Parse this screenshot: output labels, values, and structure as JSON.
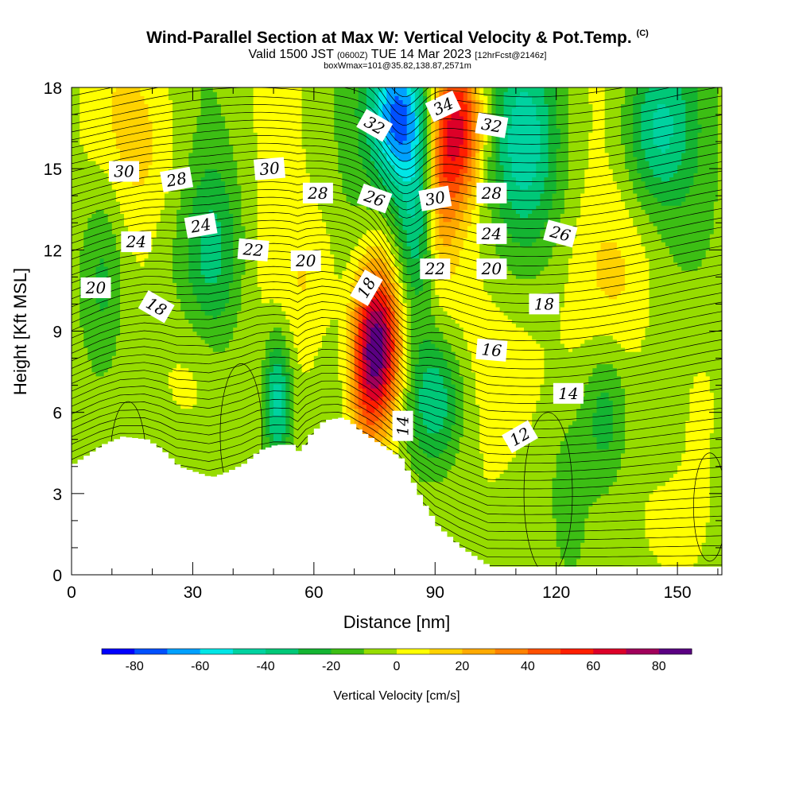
{
  "title": {
    "main": "Wind-Parallel Section at Max W: Vertical Velocity & Pot.Temp.",
    "copyright": "(C)",
    "valid_prefix": "Valid 1500 JST",
    "valid_z": "(0600Z)",
    "valid_date": "TUE 14 Mar 2023",
    "forecast": "[12hrFcst@2146z]",
    "box_info": "boxWmax=101@35.82,138.87,2571m"
  },
  "chart_data": {
    "type": "heatmap",
    "xlabel": "Distance [nm]",
    "ylabel": "Height [Kft MSL]",
    "xlim": [
      0,
      161
    ],
    "ylim": [
      0,
      18
    ],
    "x_ticks": [
      0,
      30,
      60,
      90,
      120,
      150
    ],
    "y_ticks": [
      0,
      3,
      6,
      9,
      12,
      15,
      18
    ],
    "colorbar": {
      "label": "Vertical Velocity [cm/s]",
      "ticks": [
        -80,
        -60,
        -40,
        -20,
        0,
        20,
        40,
        60,
        80
      ],
      "levels": [
        -90,
        -80,
        -70,
        -60,
        -50,
        -40,
        -30,
        -20,
        -10,
        0,
        10,
        20,
        30,
        40,
        50,
        60,
        70,
        80,
        90
      ],
      "colors": [
        "#0000ff",
        "#0050ff",
        "#00a0ff",
        "#00e6e6",
        "#00d2a0",
        "#00c878",
        "#14b432",
        "#3cbe14",
        "#96dc00",
        "#ffff00",
        "#ffd200",
        "#ffaa00",
        "#ff8200",
        "#ff5000",
        "#ff1e00",
        "#dc0028",
        "#a0005a",
        "#5a0082"
      ]
    },
    "vertical_velocity_field": {
      "background": -5,
      "features": [
        {
          "x": 76,
          "y": 8.5,
          "sx": 4,
          "sy": 2.2,
          "value": 90
        },
        {
          "x": 72,
          "y": 7.0,
          "sx": 3,
          "sy": 2.5,
          "value": 25
        },
        {
          "x": 96,
          "y": 16.5,
          "sx": 4,
          "sy": 2.0,
          "value": 60
        },
        {
          "x": 91,
          "y": 14.0,
          "sx": 3,
          "sy": 2.5,
          "value": 35
        },
        {
          "x": 81,
          "y": 17.0,
          "sx": 5,
          "sy": 1.8,
          "value": -65
        },
        {
          "x": 86,
          "y": 13.0,
          "sx": 4,
          "sy": 2.5,
          "value": -40
        },
        {
          "x": 90,
          "y": 6.5,
          "sx": 5,
          "sy": 1.8,
          "value": -40
        },
        {
          "x": 51,
          "y": 6.5,
          "sx": 2.5,
          "sy": 1.8,
          "value": -45
        },
        {
          "x": 112,
          "y": 16.0,
          "sx": 6,
          "sy": 2.5,
          "value": -35
        },
        {
          "x": 145,
          "y": 16.5,
          "sx": 6,
          "sy": 2.0,
          "value": -35
        },
        {
          "x": 110,
          "y": 8.0,
          "sx": 9,
          "sy": 2.5,
          "value": 15
        },
        {
          "x": 30,
          "y": 7.5,
          "sx": 6,
          "sy": 2.0,
          "value": 15
        },
        {
          "x": 60,
          "y": 11.0,
          "sx": 6,
          "sy": 2.0,
          "value": 12
        },
        {
          "x": 18,
          "y": 16.0,
          "sx": 10,
          "sy": 2.5,
          "value": 15
        },
        {
          "x": 8,
          "y": 11.0,
          "sx": 4,
          "sy": 3.0,
          "value": -25
        },
        {
          "x": 35,
          "y": 12.0,
          "sx": 5,
          "sy": 2.5,
          "value": -25
        },
        {
          "x": 132,
          "y": 6.0,
          "sx": 4,
          "sy": 2.0,
          "value": -25
        },
        {
          "x": 135,
          "y": 11.0,
          "sx": 8,
          "sy": 2.0,
          "value": 10
        },
        {
          "x": 155,
          "y": 7.0,
          "sx": 5,
          "sy": 2.5,
          "value": 12
        },
        {
          "x": 110,
          "y": 2.5,
          "sx": 10,
          "sy": 2.5,
          "value": 5
        },
        {
          "x": 150,
          "y": 2.0,
          "sx": 8,
          "sy": 2.0,
          "value": 8
        },
        {
          "x": 123,
          "y": 3.0,
          "sx": 4,
          "sy": 2.5,
          "value": -12
        }
      ]
    },
    "terrain_profile": [
      [
        0,
        4.1
      ],
      [
        3,
        4.4
      ],
      [
        7,
        4.8
      ],
      [
        12,
        5.1
      ],
      [
        18,
        5.0
      ],
      [
        22,
        4.6
      ],
      [
        26,
        4.0
      ],
      [
        30,
        3.8
      ],
      [
        34,
        3.6
      ],
      [
        38,
        3.8
      ],
      [
        42,
        4.1
      ],
      [
        46,
        4.6
      ],
      [
        50,
        4.8
      ],
      [
        54,
        4.8
      ],
      [
        56,
        4.5
      ],
      [
        58,
        5.1
      ],
      [
        60,
        5.4
      ],
      [
        62,
        5.7
      ],
      [
        66,
        5.8
      ],
      [
        68,
        5.7
      ],
      [
        71,
        5.3
      ],
      [
        74,
        5.0
      ],
      [
        78,
        4.6
      ],
      [
        81,
        4.3
      ],
      [
        84,
        3.4
      ],
      [
        86,
        2.8
      ],
      [
        88,
        2.3
      ],
      [
        90,
        1.8
      ],
      [
        93,
        1.4
      ],
      [
        96,
        1.0
      ],
      [
        99,
        0.7
      ],
      [
        103,
        0.3
      ],
      [
        108,
        0.3
      ],
      [
        161,
        0.3
      ]
    ],
    "potential_temperature_contours": [
      {
        "label": "12",
        "label_at": [
          111,
          5.1
        ],
        "label_angle": -30
      },
      {
        "label": "14",
        "label_at": [
          82,
          5.5
        ],
        "label_angle": -90
      },
      {
        "label": "14",
        "label_at": [
          123,
          6.7
        ],
        "label_angle": 0
      },
      {
        "label": "16",
        "label_at": [
          104,
          8.3
        ],
        "label_angle": 5
      },
      {
        "label": "18",
        "label_at": [
          21,
          9.9
        ],
        "label_angle": 30
      },
      {
        "label": "18",
        "label_at": [
          73,
          10.6
        ],
        "label_angle": -60
      },
      {
        "label": "18",
        "label_at": [
          117,
          10.0
        ],
        "label_angle": 0
      },
      {
        "label": "20",
        "label_at": [
          6,
          10.6
        ],
        "label_angle": 0
      },
      {
        "label": "20",
        "label_at": [
          58,
          11.6
        ],
        "label_angle": 0
      },
      {
        "label": "20",
        "label_at": [
          104,
          11.3
        ],
        "label_angle": 0
      },
      {
        "label": "22",
        "label_at": [
          45,
          12.0
        ],
        "label_angle": 5
      },
      {
        "label": "22",
        "label_at": [
          90,
          11.3
        ],
        "label_angle": 0
      },
      {
        "label": "24",
        "label_at": [
          16,
          12.3
        ],
        "label_angle": 0
      },
      {
        "label": "24",
        "label_at": [
          32,
          12.9
        ],
        "label_angle": -10
      },
      {
        "label": "24",
        "label_at": [
          104,
          12.6
        ],
        "label_angle": 0
      },
      {
        "label": "26",
        "label_at": [
          75,
          13.9
        ],
        "label_angle": 20
      },
      {
        "label": "26",
        "label_at": [
          121,
          12.6
        ],
        "label_angle": 15
      },
      {
        "label": "28",
        "label_at": [
          26,
          14.6
        ],
        "label_angle": -10
      },
      {
        "label": "28",
        "label_at": [
          61,
          14.1
        ],
        "label_angle": 0
      },
      {
        "label": "28",
        "label_at": [
          104,
          14.1
        ],
        "label_angle": 0
      },
      {
        "label": "30",
        "label_at": [
          13,
          14.9
        ],
        "label_angle": 0
      },
      {
        "label": "30",
        "label_at": [
          49,
          15.0
        ],
        "label_angle": -5
      },
      {
        "label": "30",
        "label_at": [
          90,
          13.9
        ],
        "label_angle": -10
      },
      {
        "label": "32",
        "label_at": [
          75,
          16.6
        ],
        "label_angle": 30
      },
      {
        "label": "32",
        "label_at": [
          104,
          16.6
        ],
        "label_angle": 10
      },
      {
        "label": "34",
        "label_at": [
          92,
          17.3
        ],
        "label_angle": -25
      }
    ]
  }
}
